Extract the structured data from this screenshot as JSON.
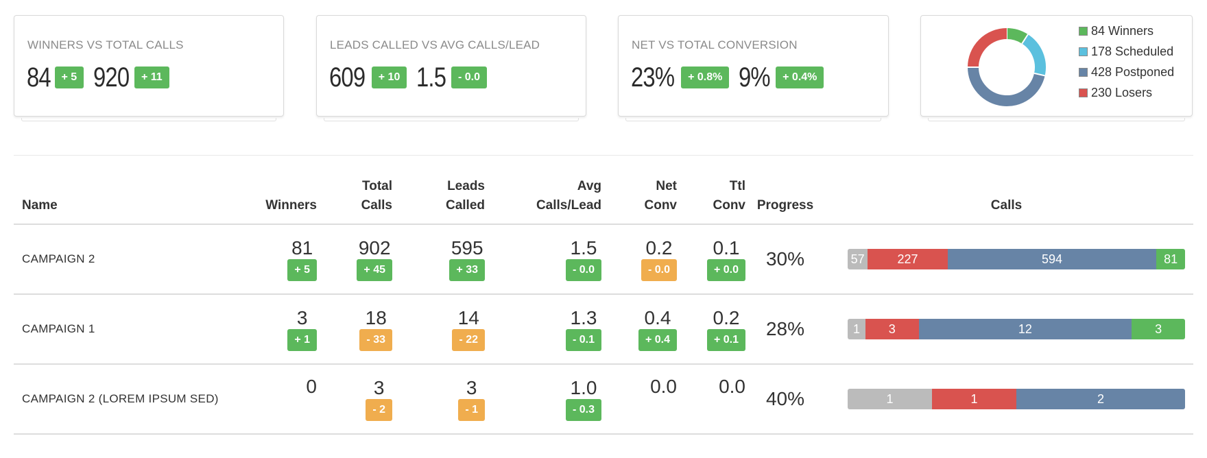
{
  "cards": [
    {
      "title": "WINNERS VS TOTAL CALLS",
      "value1": "84",
      "badge1": "+ 5",
      "value2": "920",
      "badge2": "+ 11"
    },
    {
      "title": "LEADS CALLED VS AVG CALLS/LEAD",
      "value1": "609",
      "badge1": "+ 10",
      "value2": "1.5",
      "badge2": "- 0.0"
    },
    {
      "title": "NET VS TOTAL CONVERSION",
      "value1": "23%",
      "badge1": "+ 0.8%",
      "value2": "9%",
      "badge2": "+ 0.4%"
    }
  ],
  "donut": {
    "legend": [
      {
        "label": "84 Winners",
        "value": 84,
        "color": "#5cb85c"
      },
      {
        "label": "178 Scheduled",
        "value": 178,
        "color": "#5bc0de"
      },
      {
        "label": "428 Postponed",
        "value": 428,
        "color": "#6784a6"
      },
      {
        "label": "230 Losers",
        "value": 230,
        "color": "#d9534f"
      }
    ]
  },
  "table": {
    "headers": {
      "name": "Name",
      "winners": "Winners",
      "total_calls_1": "Total",
      "total_calls_2": "Calls",
      "leads_called_1": "Leads",
      "leads_called_2": "Called",
      "avg_1": "Avg",
      "avg_2": "Calls/Lead",
      "net_1": "Net",
      "net_2": "Conv",
      "ttl_1": "Ttl",
      "ttl_2": "Conv",
      "progress": "Progress",
      "calls": "Calls"
    },
    "rows": [
      {
        "name": "CAMPAIGN 2",
        "winners": "81",
        "winners_badge": "+ 5",
        "total_calls": "902",
        "total_calls_badge": "+ 45",
        "leads_called": "595",
        "leads_called_badge": "+ 33",
        "avg": "1.5",
        "avg_badge": "- 0.0",
        "net": "0.2",
        "net_badge": "- 0.0",
        "ttl": "0.1",
        "ttl_badge": "+ 0.0",
        "progress": "30%",
        "calls": [
          {
            "label": "57",
            "value": 57,
            "color": "#bbbbbb"
          },
          {
            "label": "227",
            "value": 227,
            "color": "#d9534f"
          },
          {
            "label": "594",
            "value": 594,
            "color": "#6784a6"
          },
          {
            "label": "81",
            "value": 81,
            "color": "#5cb85c"
          }
        ]
      },
      {
        "name": "CAMPAIGN 1",
        "winners": "3",
        "winners_badge": "+ 1",
        "total_calls": "18",
        "total_calls_badge": "- 33",
        "leads_called": "14",
        "leads_called_badge": "- 22",
        "avg": "1.3",
        "avg_badge": "- 0.1",
        "net": "0.4",
        "net_badge": "+ 0.4",
        "ttl": "0.2",
        "ttl_badge": "+ 0.1",
        "progress": "28%",
        "calls": [
          {
            "label": "1",
            "value": 1,
            "color": "#bbbbbb"
          },
          {
            "label": "3",
            "value": 3,
            "color": "#d9534f"
          },
          {
            "label": "12",
            "value": 12,
            "color": "#6784a6"
          },
          {
            "label": "3",
            "value": 3,
            "color": "#5cb85c"
          }
        ]
      },
      {
        "name": "CAMPAIGN 2 (LOREM IPSUM SED)",
        "winners": "0",
        "winners_badge": "",
        "total_calls": "3",
        "total_calls_badge": "- 2",
        "leads_called": "3",
        "leads_called_badge": "- 1",
        "avg": "1.0",
        "avg_badge": "- 0.3",
        "net": "0.0",
        "net_badge": "",
        "ttl": "0.0",
        "ttl_badge": "",
        "progress": "40%",
        "calls": [
          {
            "label": "1",
            "value": 1,
            "color": "#bbbbbb"
          },
          {
            "label": "1",
            "value": 1,
            "color": "#d9534f"
          },
          {
            "label": "2",
            "value": 2,
            "color": "#6784a6"
          }
        ]
      }
    ]
  }
}
